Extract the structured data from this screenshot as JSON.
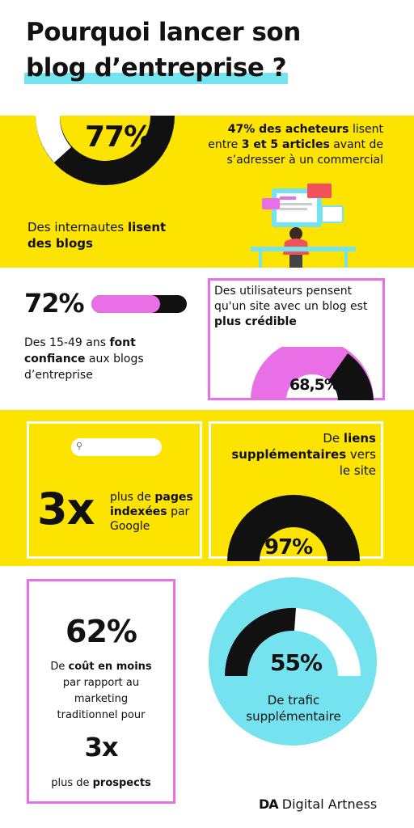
{
  "title": {
    "line1": "Pourquoi lancer son",
    "line2": "blog d’entreprise ?"
  },
  "section1": {
    "percent": "77%",
    "percent_value": 77,
    "caption_normal": "Des internautes ",
    "caption_bold": "lisent des blogs",
    "stat_bold1": "47% des acheteurs",
    "stat_t1": " lisent entre ",
    "stat_bold2": "3 et 5 articles",
    "stat_t2": " avant de s’adresser à un commercial"
  },
  "section2": {
    "percent": "72%",
    "percent_value": 72,
    "caption_t1": "Des 15-49 ans ",
    "caption_bold": "font confiance",
    "caption_t2": " aux blogs d’entreprise",
    "box_text": "Des utilisateurs pensent qu'un site avec un blog est ",
    "box_bold": "plus crédible",
    "gauge_label": "68,5%",
    "gauge_value": 68.5
  },
  "section3": {
    "big": "3x",
    "text1": "plus de ",
    "bold1": "pages indexées",
    "text2": " par Google",
    "right_t1": "De ",
    "right_bold": "liens supplémentaires",
    "right_t2": " vers le site",
    "gauge_label": "97%",
    "gauge_value": 97
  },
  "section4": {
    "percent": "62%",
    "t1": "De ",
    "bold1": "coût en moins",
    "t2": " par rapport au marketing traditionnel pour",
    "big": "3x",
    "t3": "plus de ",
    "bold2": "prospects",
    "circle_percent": "55%",
    "circle_value": 55,
    "circle_caption": "De trafic supplémentaire"
  },
  "brand": {
    "logo": "DA",
    "name": "Digital Artness"
  },
  "colors": {
    "yellow": "#fde400",
    "pink": "#e86fe6",
    "cyan": "#74e3ef",
    "black": "#111111"
  }
}
